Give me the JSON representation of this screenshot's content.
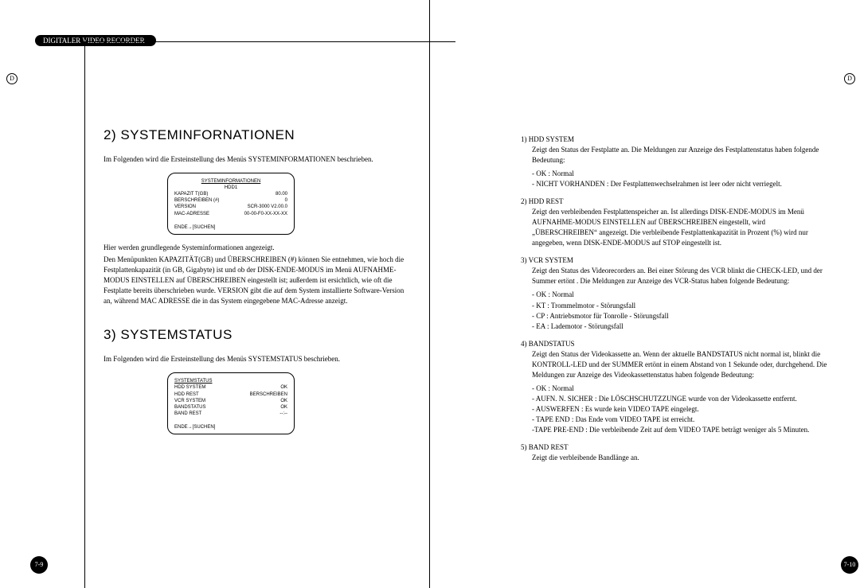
{
  "doc": {
    "header_tab": "DIGITALER VIDEO RECORDER",
    "side_letter": "D",
    "page_left": "7-9",
    "page_right": "7-10"
  },
  "left": {
    "section2_title": "2) SYSTEMINFORNATIONEN",
    "section2_intro": "Im Folgenden wird die Ersteinstellung des Menüs SYSTEMINFORMATIONEN beschrieben.",
    "screen1": {
      "title": "SYSTEMINFORMATIONEN",
      "sub": "HDD1",
      "rows": [
        {
          "l": "KAPAZIT T(GB)",
          "r": "80.00"
        },
        {
          "l": "BERSCHREIBEN (#)",
          "r": "0"
        },
        {
          "l": "VERSION",
          "r": "SCR-3000  V2.00.0"
        },
        {
          "l": "MAC-ADRESSE",
          "r": "00-00-F0-XX-XX-XX"
        }
      ],
      "foot": "ENDE→[SUCHEN]"
    },
    "section2_body1": "Hier werden grundlegende Systeminformationen angezeigt.",
    "section2_body2": "Den Menüpunkten KAPAZITÄT(GB) und ÜBERSCHREIBEN (#) können Sie entnehmen, wie hoch die Festplattenkapazität (in GB, Gigabyte) ist und ob der DISK-ENDE-MODUS im Menü AUFNAHME-MODUS EINSTELLEN auf ÜBERSCHREIBEN eingestellt ist; außerdem ist ersichtlich, wie oft die Festplatte bereits überschrieben wurde. VERSION gibt die auf dem System installierte Software-Version an, während MAC ADRESSE die in das System eingegebene MAC-Adresse anzeigt.",
    "section3_title": "3) SYSTEMSTATUS",
    "section3_intro": "Im Folgenden wird die Ersteinstellung des Menüs SYSTEMSTATUS beschrieben.",
    "screen2": {
      "title": "SYSTEMSTATUS",
      "rows": [
        {
          "l": "HDD SYSTEM",
          "r": "OK"
        },
        {
          "l": "HDD REST",
          "r": "BERSCHREIBEN"
        },
        {
          "l": "VCR SYSTEM",
          "r": "OK"
        },
        {
          "l": "BANDSTATUS",
          "r": "OK"
        },
        {
          "l": "BAND REST",
          "r": "--:--"
        }
      ],
      "foot": "ENDE→[SUCHEN]"
    }
  },
  "right": {
    "items": [
      {
        "h": "1)  HDD SYSTEM",
        "body": "Zeigt den Status der Festplatte an. Die Meldungen zur Anzeige des Festplattenstatus haben folgende Bedeutung:",
        "lines": [
          "- OK : Normal",
          "- NICHT VORHANDEN : Der Festplattenwechselrahmen ist leer oder nicht verriegelt."
        ]
      },
      {
        "h": "2)  HDD REST",
        "body": "Zeigt den verbleibenden Festplattenspeicher an. Ist allerdings DISK-ENDE-MODUS im Menü AUFNAHME-MODUS EINSTELLEN auf ÜBERSCHREIBEN eingestellt, wird „ÜBERSCHREIBEN“ angezeigt. Die verbleibende Festplattenkapazität in Prozent (%) wird nur angegeben, wenn DISK-ENDE-MODUS auf STOP eingestellt ist.",
        "lines": []
      },
      {
        "h": "3)  VCR SYSTEM",
        "body": "Zeigt den Status des Videorecorders an. Bei einer Störung des VCR blinkt die CHECK-LED, und der Summer ertönt . Die Meldungen zur Anzeige des VCR-Status haben folgende Bedeutung:",
        "lines": [
          "- OK : Normal",
          "- KT : Trommelmotor - Störungsfall",
          "- CP : Antriebsmotor für Tonrolle - Störungsfall",
          "- EA : Lademotor - Störungsfall"
        ]
      },
      {
        "h": "4)  BANDSTATUS",
        "body": "Zeigt den Status der Videokassette an. Wenn der aktuelle BANDSTATUS nicht normal ist, blinkt die KONTROLL-LED und der SUMMER ertönt in einem Abstand von 1 Sekunde oder, durchgehend. Die Meldungen zur Anzeige des Videokassettenstatus haben folgende Bedeutung:",
        "lines": [
          "- OK : Normal",
          "- AUFN. N. SICHER : Die LÖSCHSCHUTZZUNGE wurde von der Videokassette entfernt.",
          "- AUSWERFEN : Es wurde kein VIDEO TAPE eingelegt.",
          "- TAPE END : Das Ende vom VIDEO TAPE ist erreicht.",
          "-TAPE PRE-END : Die verbleibende Zeit auf dem VIDEO TAPE beträgt weniger als 5 Minuten."
        ]
      },
      {
        "h": "5)   BAND REST",
        "body": "Zeigt die verbleibende Bandlänge an.",
        "lines": []
      }
    ]
  }
}
